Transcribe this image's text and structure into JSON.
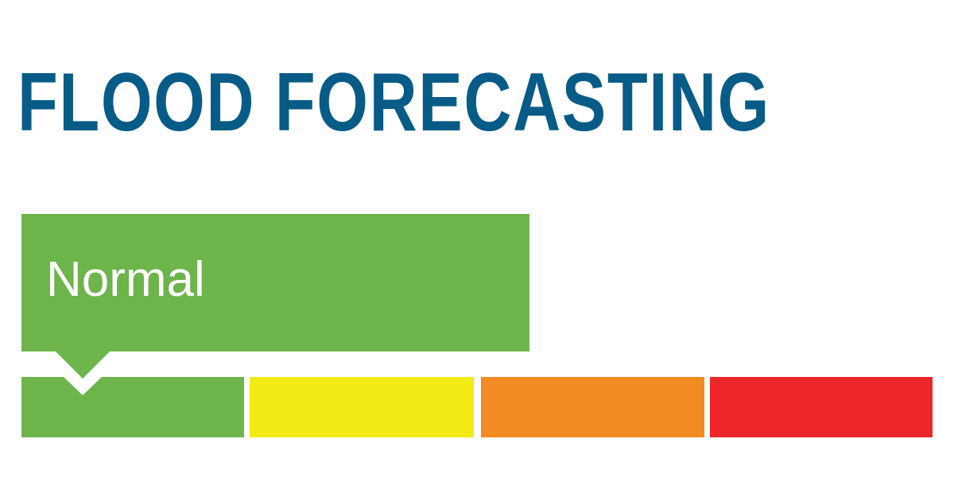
{
  "title": "FLOOD FORECASTING",
  "status": {
    "label": "Normal",
    "level_index": 0
  },
  "colors": {
    "title": "#075b87",
    "normal": "#6db44b",
    "levels": [
      "#6db44b",
      "#f3e913",
      "#f28b22",
      "#ed262a"
    ]
  }
}
